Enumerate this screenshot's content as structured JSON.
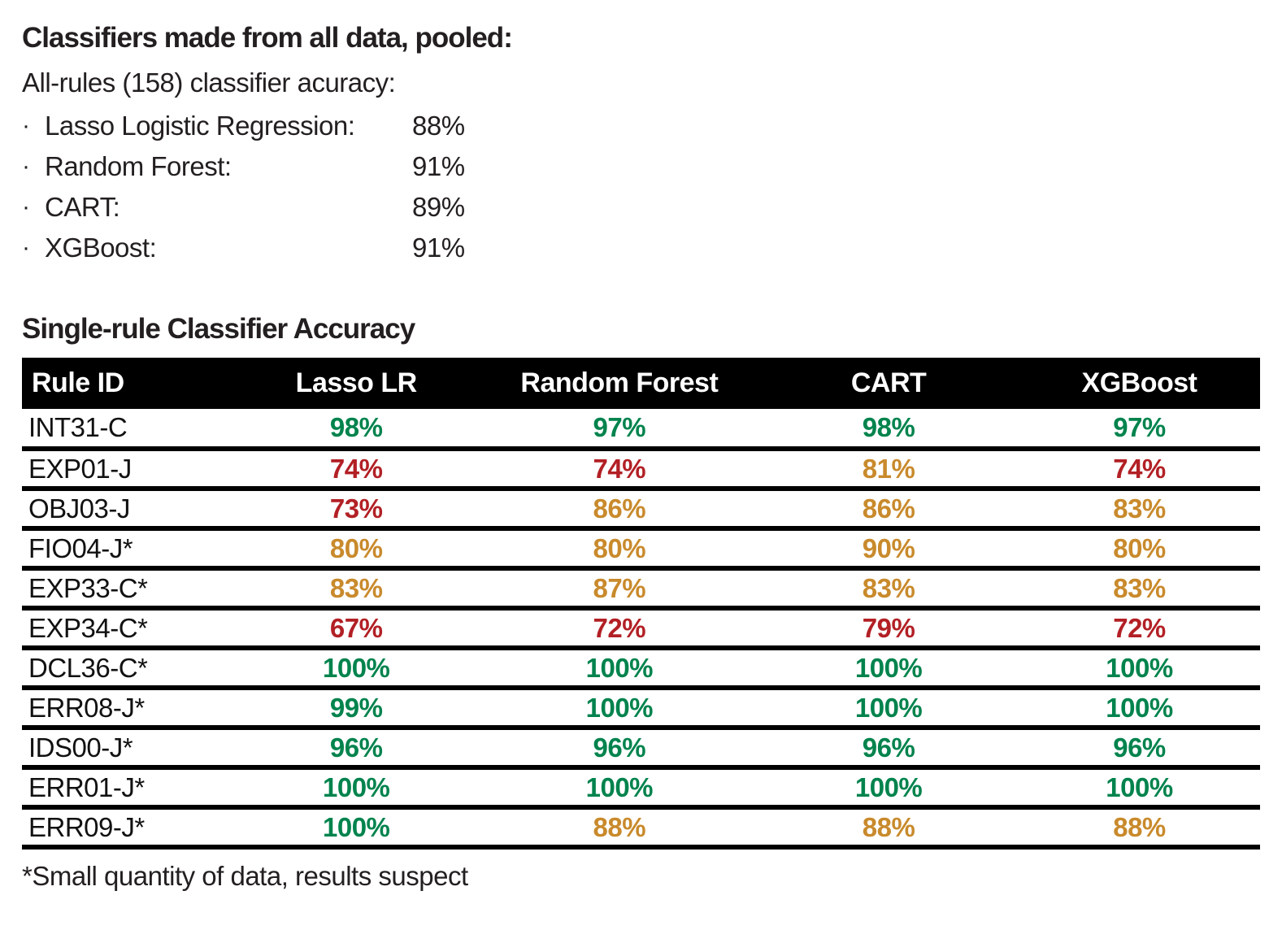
{
  "colors": {
    "good": "#00834D",
    "warn": "#C98A2C",
    "bad": "#B22025",
    "header_bg": "#000000",
    "header_fg": "#FFFFFF",
    "text": "#231F20"
  },
  "pooled": {
    "title": "Classifiers made from all data, pooled:",
    "subtitle": "All-rules (158) classifier acuracy:",
    "bullet": "·",
    "items": [
      {
        "label": "Lasso Logistic Regression:",
        "value": "88%"
      },
      {
        "label": "Random Forest:",
        "value": "91%"
      },
      {
        "label": "CART:",
        "value": "89%"
      },
      {
        "label": "XGBoost:",
        "value": "91%"
      }
    ]
  },
  "table": {
    "title": "Single-rule Classifier Accuracy",
    "columns": [
      "Rule ID",
      "Lasso LR",
      "Random Forest",
      "CART",
      "XGBoost"
    ],
    "rows": [
      {
        "rule_id": "INT31-C",
        "values": [
          {
            "text": "98%",
            "status": "good"
          },
          {
            "text": "97%",
            "status": "good"
          },
          {
            "text": "98%",
            "status": "good"
          },
          {
            "text": "97%",
            "status": "good"
          }
        ]
      },
      {
        "rule_id": "EXP01-J",
        "values": [
          {
            "text": "74%",
            "status": "bad"
          },
          {
            "text": "74%",
            "status": "bad"
          },
          {
            "text": "81%",
            "status": "warn"
          },
          {
            "text": "74%",
            "status": "bad"
          }
        ]
      },
      {
        "rule_id": "OBJ03-J",
        "values": [
          {
            "text": "73%",
            "status": "bad"
          },
          {
            "text": "86%",
            "status": "warn"
          },
          {
            "text": "86%",
            "status": "warn"
          },
          {
            "text": "83%",
            "status": "warn"
          }
        ]
      },
      {
        "rule_id": "FIO04-J*",
        "values": [
          {
            "text": "80%",
            "status": "warn"
          },
          {
            "text": "80%",
            "status": "warn"
          },
          {
            "text": "90%",
            "status": "warn"
          },
          {
            "text": "80%",
            "status": "warn"
          }
        ]
      },
      {
        "rule_id": "EXP33-C*",
        "values": [
          {
            "text": "83%",
            "status": "warn"
          },
          {
            "text": "87%",
            "status": "warn"
          },
          {
            "text": "83%",
            "status": "warn"
          },
          {
            "text": "83%",
            "status": "warn"
          }
        ]
      },
      {
        "rule_id": "EXP34-C*",
        "values": [
          {
            "text": "67%",
            "status": "bad"
          },
          {
            "text": "72%",
            "status": "bad"
          },
          {
            "text": "79%",
            "status": "bad"
          },
          {
            "text": "72%",
            "status": "bad"
          }
        ]
      },
      {
        "rule_id": "DCL36-C*",
        "values": [
          {
            "text": "100%",
            "status": "good"
          },
          {
            "text": "100%",
            "status": "good"
          },
          {
            "text": "100%",
            "status": "good"
          },
          {
            "text": "100%",
            "status": "good"
          }
        ]
      },
      {
        "rule_id": "ERR08-J*",
        "values": [
          {
            "text": "99%",
            "status": "good"
          },
          {
            "text": "100%",
            "status": "good"
          },
          {
            "text": "100%",
            "status": "good"
          },
          {
            "text": "100%",
            "status": "good"
          }
        ]
      },
      {
        "rule_id": "IDS00-J*",
        "values": [
          {
            "text": "96%",
            "status": "good"
          },
          {
            "text": "96%",
            "status": "good"
          },
          {
            "text": "96%",
            "status": "good"
          },
          {
            "text": "96%",
            "status": "good"
          }
        ]
      },
      {
        "rule_id": "ERR01-J*",
        "values": [
          {
            "text": "100%",
            "status": "good"
          },
          {
            "text": "100%",
            "status": "good"
          },
          {
            "text": "100%",
            "status": "good"
          },
          {
            "text": "100%",
            "status": "good"
          }
        ]
      },
      {
        "rule_id": "ERR09-J*",
        "values": [
          {
            "text": "100%",
            "status": "good"
          },
          {
            "text": "88%",
            "status": "warn"
          },
          {
            "text": "88%",
            "status": "warn"
          },
          {
            "text": "88%",
            "status": "warn"
          }
        ]
      }
    ],
    "footnote": "*Small quantity of data, results suspect"
  }
}
